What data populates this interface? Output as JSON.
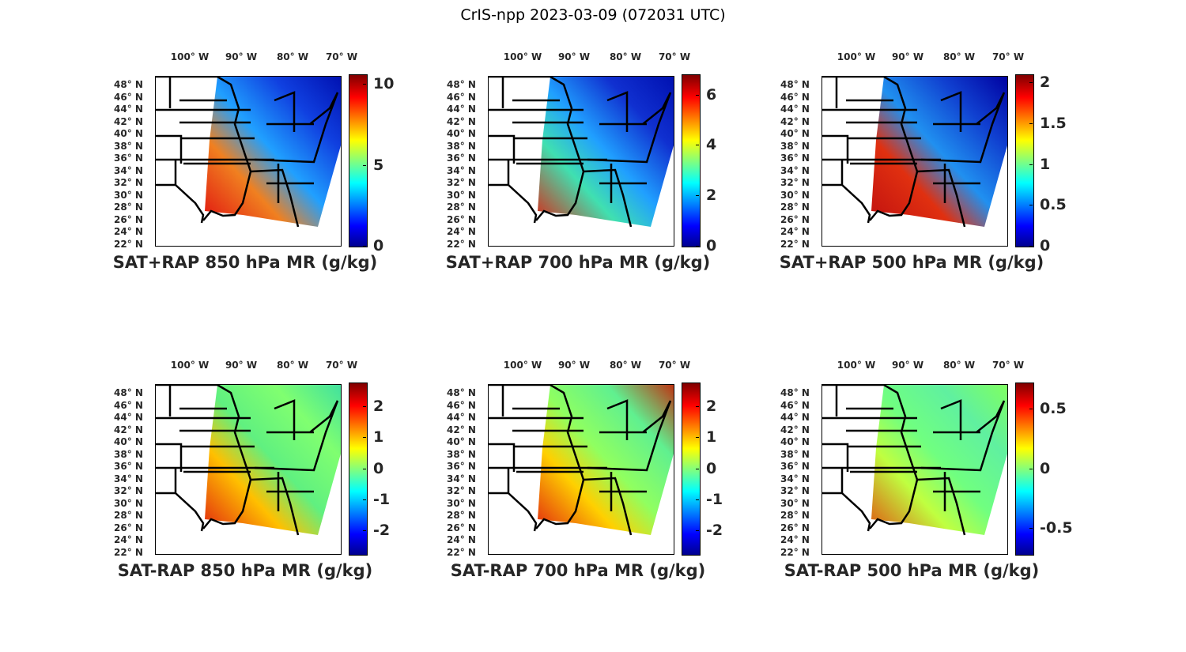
{
  "figure_title": "CrIS-npp 2023-03-09 (072031 UTC)",
  "lon_labels": [
    "100° W",
    "90° W",
    "80° W",
    "70° W"
  ],
  "lat_labels": [
    "48° N",
    "46° N",
    "44° N",
    "42° N",
    "40° N",
    "38° N",
    "36° N",
    "34° N",
    "32° N",
    "30° N",
    "28° N",
    "26° N",
    "24° N",
    "22° N"
  ],
  "colormap": "jet",
  "panels": [
    {
      "title": "SAT+RAP 850 hPa MR (g/kg)",
      "clim": [
        0,
        10.6
      ],
      "ticks": [
        {
          "v": 0,
          "label": "0"
        },
        {
          "v": 5,
          "label": "5"
        },
        {
          "v": 10,
          "label": "10"
        }
      ]
    },
    {
      "title": "SAT+RAP 700 hPa MR (g/kg)",
      "clim": [
        0,
        6.8
      ],
      "ticks": [
        {
          "v": 0,
          "label": "0"
        },
        {
          "v": 2,
          "label": "2"
        },
        {
          "v": 4,
          "label": "4"
        },
        {
          "v": 6,
          "label": "6"
        }
      ]
    },
    {
      "title": "SAT+RAP 500 hPa MR (g/kg)",
      "clim": [
        0,
        2.1
      ],
      "ticks": [
        {
          "v": 0,
          "label": "0"
        },
        {
          "v": 0.5,
          "label": "0.5"
        },
        {
          "v": 1,
          "label": "1"
        },
        {
          "v": 1.5,
          "label": "1.5"
        },
        {
          "v": 2,
          "label": "2"
        }
      ]
    },
    {
      "title": "SAT-RAP 850 hPa MR (g/kg)",
      "clim": [
        -2.75,
        2.75
      ],
      "ticks": [
        {
          "v": -2,
          "label": "-2"
        },
        {
          "v": -1,
          "label": "-1"
        },
        {
          "v": 0,
          "label": "0"
        },
        {
          "v": 1,
          "label": "1"
        },
        {
          "v": 2,
          "label": "2"
        }
      ]
    },
    {
      "title": "SAT-RAP 700 hPa MR (g/kg)",
      "clim": [
        -2.75,
        2.75
      ],
      "ticks": [
        {
          "v": -2,
          "label": "-2"
        },
        {
          "v": -1,
          "label": "-1"
        },
        {
          "v": 0,
          "label": "0"
        },
        {
          "v": 1,
          "label": "1"
        },
        {
          "v": 2,
          "label": "2"
        }
      ]
    },
    {
      "title": "SAT-RAP 500 hPa MR (g/kg)",
      "clim": [
        -0.72,
        0.72
      ],
      "ticks": [
        {
          "v": -0.5,
          "label": "-0.5"
        },
        {
          "v": 0,
          "label": "0"
        },
        {
          "v": 0.5,
          "label": "0.5"
        }
      ]
    }
  ]
}
